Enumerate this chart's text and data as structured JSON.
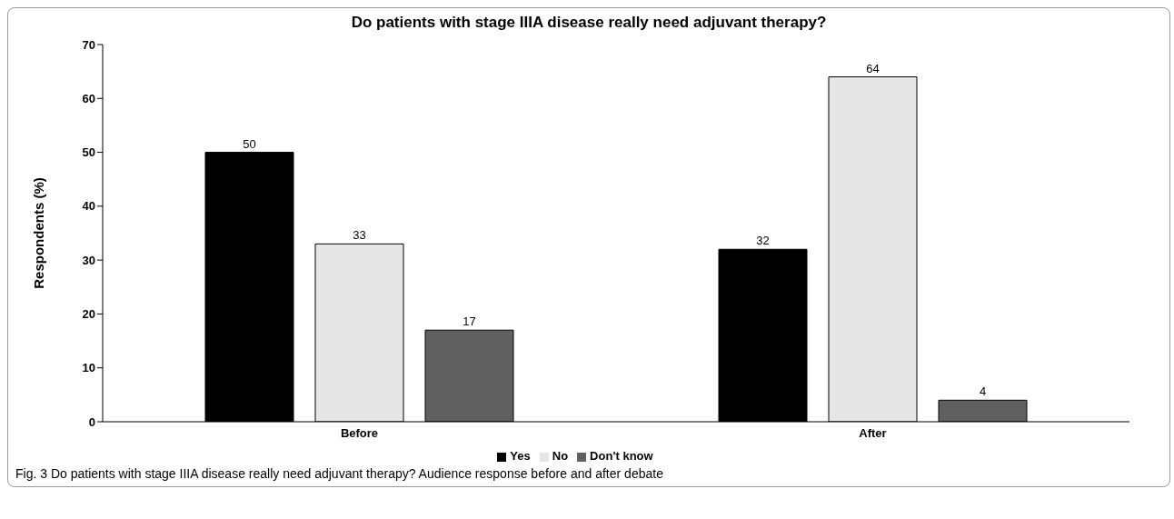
{
  "chart_data": {
    "type": "bar",
    "title": "Do patients with stage IIIA disease really need adjuvant therapy?",
    "ylabel": "Respondents (%)",
    "categories": [
      "Before",
      "After"
    ],
    "series": [
      {
        "name": "Yes",
        "color": "#000000",
        "values": [
          50,
          32
        ]
      },
      {
        "name": "No",
        "color": "#e6e6e6",
        "values": [
          33,
          64
        ]
      },
      {
        "name": "Don't know",
        "color": "#606060",
        "values": [
          17,
          4
        ]
      }
    ],
    "ylim": [
      0,
      70
    ],
    "yticks": [
      0,
      10,
      20,
      30,
      40,
      50,
      60,
      70
    ],
    "grid": false,
    "legend": "bottom",
    "data_labels": true,
    "annotations": [
      "Fig. 3  Do patients with stage IIIA disease really need adjuvant therapy? Audience response before and after debate"
    ]
  }
}
